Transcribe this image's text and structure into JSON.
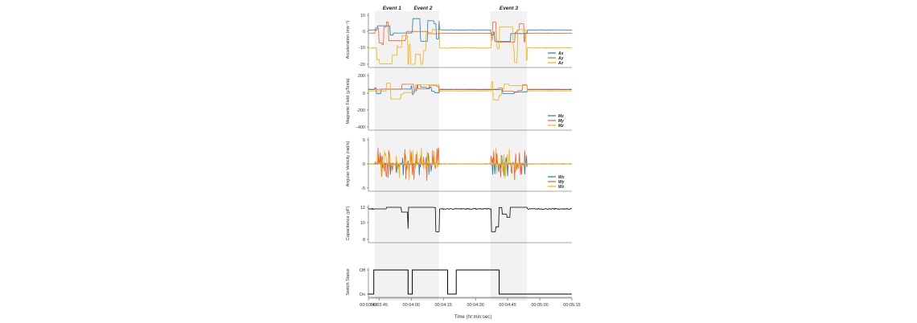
{
  "chart_data": {
    "type": "line",
    "x_axis": {
      "label": "Time (hr:min:sec)",
      "range_sec": [
        220,
        315
      ],
      "tick_seconds": [
        220,
        225,
        240,
        255,
        270,
        285,
        300,
        315
      ],
      "tick_labels": [
        "00:03:40",
        "00:03:45",
        "00:04:00",
        "00:04:15",
        "00:04:30",
        "00:04:45",
        "00:05:00",
        "00:05:15"
      ]
    },
    "events": [
      {
        "label": "Event 1",
        "start_sec": 223,
        "end_sec": 239
      },
      {
        "label": "Event 2",
        "start_sec": 238,
        "end_sec": 253
      },
      {
        "label": "Event 3",
        "start_sec": 277,
        "end_sec": 294
      }
    ],
    "panels": [
      {
        "id": "acceleration",
        "ylabel": "Acceleration (ms⁻²)",
        "ylim": [
          -20,
          10
        ],
        "yticks": [
          10,
          0,
          -10,
          -20
        ],
        "legend": "bottom-right",
        "series": [
          {
            "name": "Ax",
            "color": "#1f77b4",
            "baseline": 1,
            "amplitude": 7
          },
          {
            "name": "Ay",
            "color": "#e8602c",
            "baseline": -1,
            "amplitude": 7
          },
          {
            "name": "Az",
            "color": "#f2b10e",
            "baseline": -10,
            "amplitude": 14
          }
        ]
      },
      {
        "id": "magnetic",
        "ylabel": "Magnetic Field (μTesla)",
        "ylim": [
          -400,
          200
        ],
        "yticks": [
          200,
          0,
          -200,
          -400
        ],
        "legend": "bottom-right",
        "series": [
          {
            "name": "Mx",
            "color": "#1f77b4",
            "baseline": 35,
            "amplitude": 60
          },
          {
            "name": "My",
            "color": "#e8602c",
            "baseline": 40,
            "amplitude": 60
          },
          {
            "name": "Mz",
            "color": "#f2b10e",
            "baseline": 20,
            "amplitude": 110
          }
        ]
      },
      {
        "id": "angular",
        "ylabel": "Angular Velocity (rad/s)",
        "ylim": [
          -5,
          5
        ],
        "yticks": [
          5,
          0,
          -5
        ],
        "legend": "bottom-right",
        "series": [
          {
            "name": "Wx",
            "color": "#1f77b4",
            "baseline": 0,
            "amplitude": 2.5
          },
          {
            "name": "Wy",
            "color": "#e8602c",
            "baseline": 0,
            "amplitude": 3.5
          },
          {
            "name": "Wz",
            "color": "#f2b10e",
            "baseline": 0,
            "amplitude": 3.5
          }
        ]
      },
      {
        "id": "capacitance",
        "ylabel": "Capacitance (pF)",
        "ylim": [
          8,
          12
        ],
        "yticks": [
          12,
          10,
          8
        ],
        "legend": "none",
        "series": [
          {
            "name": "Capacitance",
            "color": "#000000",
            "baseline": 11.8,
            "amplitude": 3
          }
        ]
      },
      {
        "id": "switch",
        "ylabel": "Switch Status",
        "ylim": [
          "On",
          "Off"
        ],
        "ytick_labels": [
          "Off",
          "On"
        ],
        "legend": "none",
        "series": [
          {
            "name": "Switch",
            "color": "#000000",
            "states": [
              {
                "from": 220,
                "to": 222.5,
                "value": "On"
              },
              {
                "from": 222.5,
                "to": 238.5,
                "value": "Off"
              },
              {
                "from": 238.5,
                "to": 240.5,
                "value": "On"
              },
              {
                "from": 240.5,
                "to": 257,
                "value": "Off"
              },
              {
                "from": 257,
                "to": 261,
                "value": "On"
              },
              {
                "from": 261,
                "to": 281,
                "value": "Off"
              },
              {
                "from": 281,
                "to": 297,
                "value": "On"
              },
              {
                "from": 297,
                "to": 315,
                "value": "On"
              }
            ]
          }
        ]
      }
    ]
  }
}
